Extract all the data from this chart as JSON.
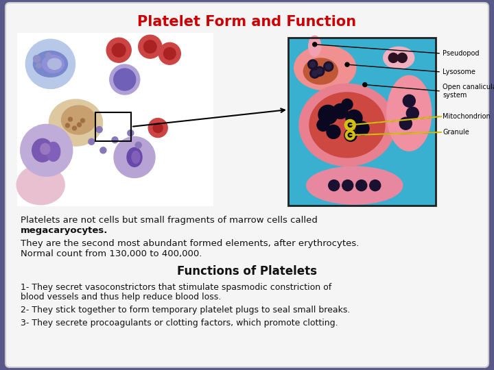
{
  "title": "Platelet Form and Function",
  "title_color": "#cc0000",
  "title_fontsize": 15,
  "background_color": "#5a5a8a",
  "card_color": "#f5f5f5",
  "label_texts": [
    "Pseudopod",
    "Lysosome",
    "Open canalicular\nsystem",
    "Mitochondrion",
    "Granule"
  ],
  "label_fontsize": 7.0,
  "body_fontsize": 9.5,
  "functions_title": "Functions of Platelets",
  "functions_title_fontsize": 12,
  "body_line1": "Platelets are not cells but small fragments of marrow cells called",
  "body_line2": "megacaryocytes.",
  "body_line3": "They are the second most abundant formed elements, after erythrocytes.",
  "body_line4": "Normal count from 130,000 to 400,000.",
  "func1": "1- They secret vasoconstrictors that stimulate spasmodic constriction of blood vessels and thus help reduce blood loss.",
  "func2": "2- They stick together to form temporary platelet plugs to seal small breaks.",
  "func3": "3- They secrete procoagulants or clotting factors, which promote clotting."
}
